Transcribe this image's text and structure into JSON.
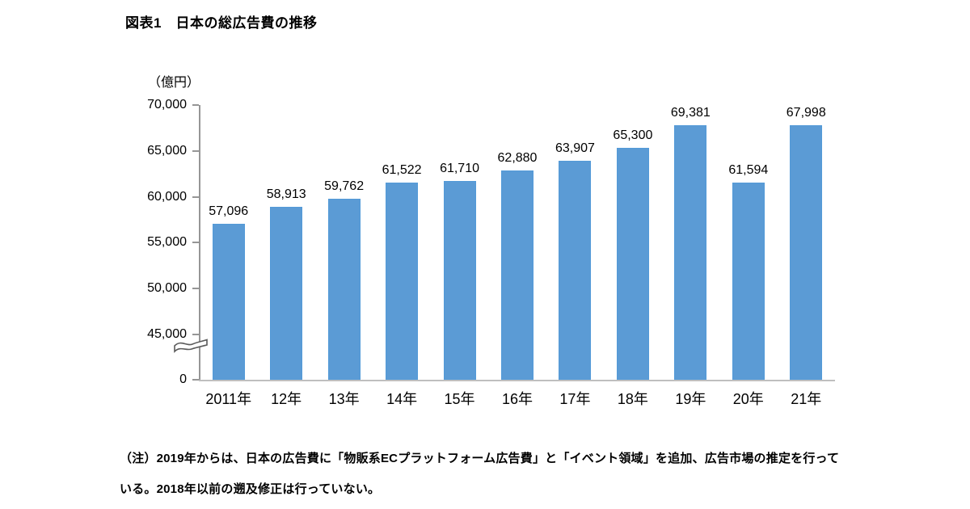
{
  "page": {
    "title": "図表1　日本の総広告費の推移"
  },
  "chart_data": {
    "type": "bar",
    "title": "図表1　日本の総広告費の推移",
    "xlabel": "",
    "ylabel": "（億円）",
    "unit_label": "（億円）",
    "categories": [
      "2011年",
      "12年",
      "13年",
      "14年",
      "15年",
      "16年",
      "17年",
      "18年",
      "19年",
      "20年",
      "21年"
    ],
    "values": [
      57096,
      58913,
      59762,
      61522,
      61710,
      62880,
      63907,
      65300,
      69381,
      61594,
      67998
    ],
    "value_labels": [
      "57,096",
      "58,913",
      "59,762",
      "61,522",
      "61,710",
      "62,880",
      "63,907",
      "65,300",
      "69,381",
      "61,594",
      "67,998"
    ],
    "y_ticks": [
      0,
      45000,
      50000,
      55000,
      60000,
      65000,
      70000
    ],
    "y_tick_labels": [
      "0",
      "45,000",
      "50,000",
      "55,000",
      "60,000",
      "65,000",
      "70,000"
    ],
    "axis_break_between": [
      0,
      45000
    ],
    "ylim": [
      0,
      70000
    ],
    "grid": false,
    "legend": "none",
    "bar_color": "#5b9bd5",
    "axis_color": "#969696",
    "baseline_color": "#bfbfbf"
  },
  "note": {
    "line1": "（注）2019年からは、日本の広告費に「物販系ECプラットフォーム広告費」と「イベント領域」を追加、広告市場の推定を行って",
    "line2": "いる。2018年以前の遡及修正は行っていない。"
  }
}
